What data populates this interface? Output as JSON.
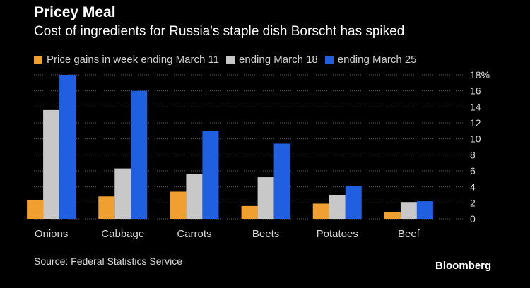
{
  "title": "Pricey Meal",
  "subtitle": "Cost of ingredients for Russia's staple dish Borscht has spiked",
  "source": "Source: Federal Statistics Service",
  "brand": "Bloomberg",
  "colors": {
    "background": "#000000",
    "grid": "#5a5a5a",
    "axis_text": "#d8d8d8"
  },
  "chart_data": {
    "type": "bar",
    "categories": [
      "Onions",
      "Cabbage",
      "Carrots",
      "Beets",
      "Potatoes",
      "Beef"
    ],
    "series": [
      {
        "name": "Price gains in week ending March 11",
        "color": "#f0a030",
        "values": [
          2.3,
          2.8,
          3.4,
          1.6,
          1.9,
          0.8
        ]
      },
      {
        "name": "ending March 18",
        "color": "#c8c8c8",
        "values": [
          13.6,
          6.3,
          5.6,
          5.2,
          3.0,
          2.1
        ]
      },
      {
        "name": "ending March 25",
        "color": "#1f5fe0",
        "values": [
          18.0,
          16.0,
          11.0,
          9.4,
          4.1,
          2.2
        ]
      }
    ],
    "y_ticks": [
      "0",
      "2",
      "4",
      "6",
      "8",
      "10",
      "12",
      "14",
      "16",
      "18%"
    ],
    "ylim": [
      0,
      18
    ],
    "grid": true,
    "legend_position": "top-left"
  }
}
